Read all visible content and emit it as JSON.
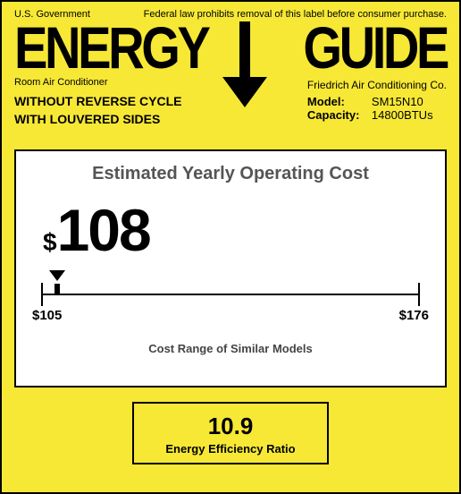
{
  "header": {
    "left": "U.S. Government",
    "right": "Federal law prohibits removal of this label before consumer purchase."
  },
  "logo": {
    "word1": "ENERGY",
    "word2": "GUIDE"
  },
  "subheader": {
    "left": "Room Air Conditioner",
    "right": "Friedrich Air Conditioning Co."
  },
  "features": {
    "line1": "WITHOUT REVERSE CYCLE",
    "line2": "WITH LOUVERED SIDES"
  },
  "product": {
    "model_label": "Model:",
    "model": "SM15N10",
    "capacity_label": "Capacity:",
    "capacity": "14800BTUs"
  },
  "cost": {
    "title": "Estimated Yearly Operating Cost",
    "currency": "$",
    "value": "108",
    "range_min": "$105",
    "range_max": "$176",
    "range_min_num": 105,
    "range_max_num": 176,
    "value_num": 108,
    "caption": "Cost Range of Similar Models",
    "marker_percent": 4.2
  },
  "eer": {
    "value": "10.9",
    "label": "Energy Efficiency Ratio"
  },
  "colors": {
    "background": "#f7e836",
    "panel": "#ffffff",
    "text": "#000000",
    "muted": "#555555"
  }
}
